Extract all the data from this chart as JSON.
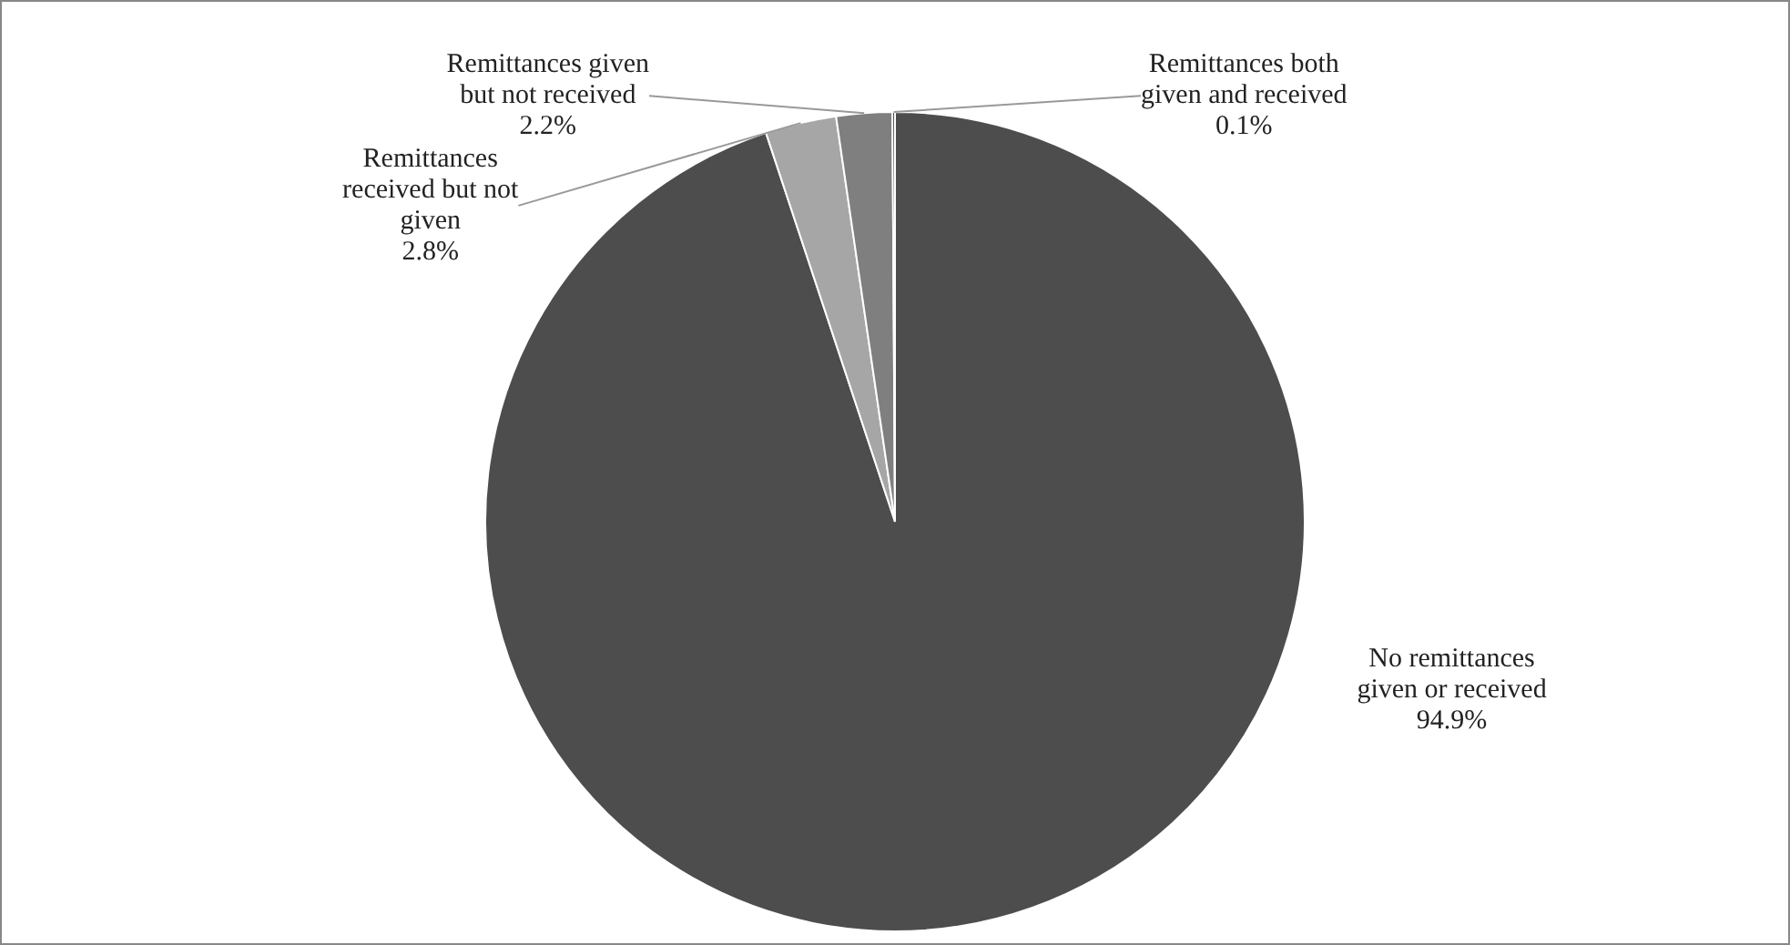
{
  "chart_data": {
    "type": "pie",
    "categories": [
      "No remittances given or received",
      "Remittances received but not given",
      "Remittances given but not received",
      "Remittances both given and received"
    ],
    "values": [
      94.9,
      2.8,
      2.2,
      0.1
    ],
    "colors": [
      "#4d4d4d",
      "#a6a6a6",
      "#7f7f7f",
      "#262626"
    ],
    "value_labels": [
      "94.9%",
      "2.8%",
      "2.2%",
      "0.1%"
    ],
    "legend": false
  }
}
